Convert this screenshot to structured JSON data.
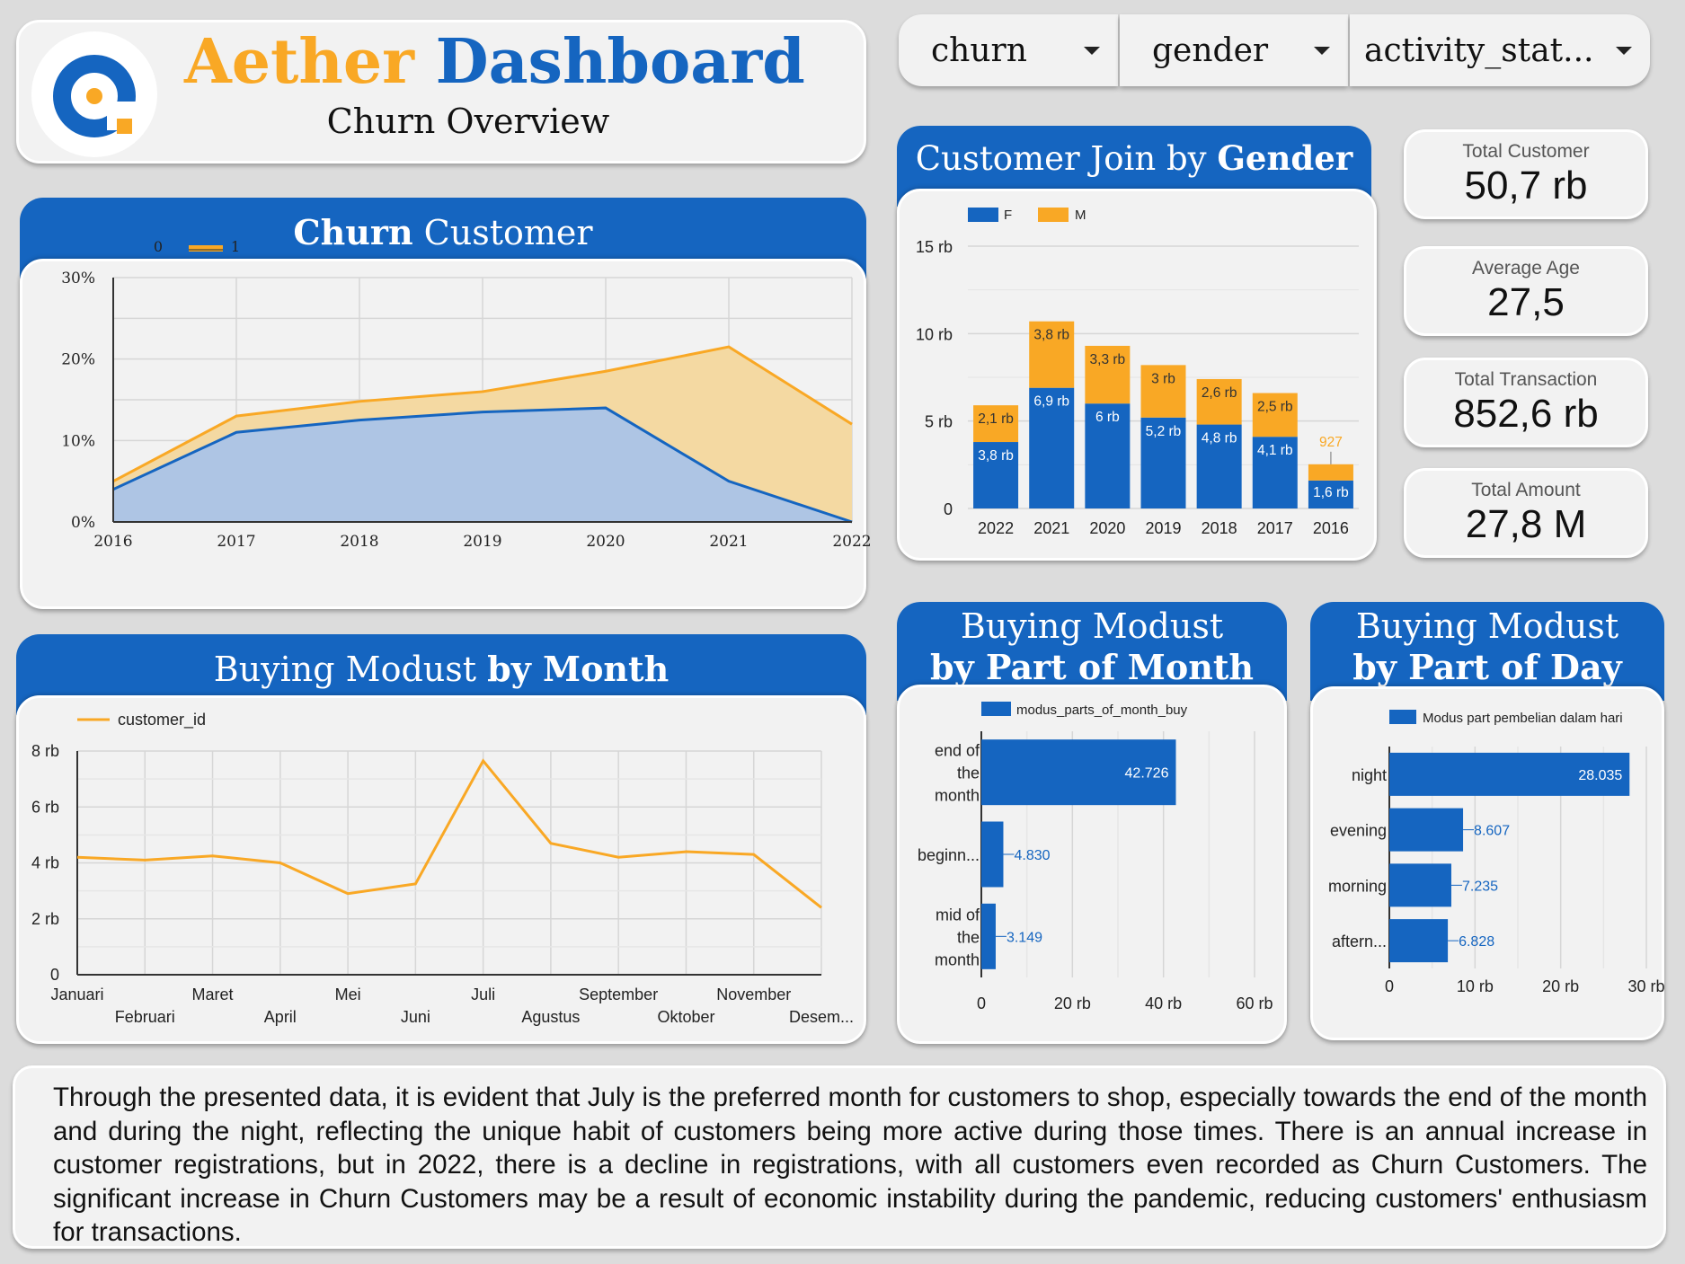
{
  "header": {
    "title_part1": "Aether",
    "title_part2": "Dashboard",
    "subtitle": "Churn Overview"
  },
  "filters": [
    {
      "label": "churn"
    },
    {
      "label": "gender"
    },
    {
      "label": "activity_stat..."
    }
  ],
  "kpis": [
    {
      "label": "Total Customer",
      "value": "50,7 rb"
    },
    {
      "label": "Average Age",
      "value": "27,5"
    },
    {
      "label": "Total Transaction",
      "value": "852,6 rb"
    },
    {
      "label": "Total Amount",
      "value": "27,8 M"
    }
  ],
  "summary_text": "Through the presented data, it is evident that July is the preferred month for customers to shop, especially towards the end of the month and during the night, reflecting the unique habit of customers being more active during those times. There is an annual increase in customer registrations, but in 2022, there is a decline in registrations, with all customers even recorded as Churn Customers. The significant increase in Churn Customers may be a result of economic instability during the pandemic, reducing customers' enthusiasm for transactions.",
  "colors": {
    "blue": "#1565c0",
    "orange": "#f9a825",
    "blue_fill": "#aec5e4",
    "orange_fill": "#f4d9a2"
  },
  "chart_data": [
    {
      "id": "churn",
      "type": "area",
      "title_bold": "Churn",
      "title_rest": "Customer",
      "x": [
        "2016",
        "2017",
        "2018",
        "2019",
        "2020",
        "2021",
        "2022"
      ],
      "series": [
        {
          "name": "0",
          "values": [
            4,
            11,
            12.5,
            13.5,
            14,
            5,
            0
          ]
        },
        {
          "name": "1",
          "values": [
            5,
            13,
            14.8,
            16,
            18.5,
            21.5,
            12
          ]
        }
      ],
      "yticks": [
        "0%",
        "10%",
        "20%",
        "30%"
      ],
      "ylim": [
        0,
        30
      ],
      "grid": true
    },
    {
      "id": "gender",
      "type": "bar",
      "stacked": true,
      "title_rest": "Customer Join by",
      "title_bold": "Gender",
      "categories": [
        "2022",
        "2021",
        "2020",
        "2019",
        "2018",
        "2017",
        "2016"
      ],
      "series": [
        {
          "name": "F",
          "values": [
            3.8,
            6.9,
            6,
            5.2,
            4.8,
            4.1,
            1.6
          ],
          "labels": [
            "3,8 rb",
            "6,9 rb",
            "6 rb",
            "5,2 rb",
            "4,8 rb",
            "4,1 rb",
            "1,6 rb"
          ]
        },
        {
          "name": "M",
          "values": [
            2.1,
            3.8,
            3.3,
            3,
            2.6,
            2.5,
            0.927
          ],
          "labels": [
            "2,1 rb",
            "3,8 rb",
            "3,3 rb",
            "3 rb",
            "2,6 rb",
            "2,5 rb",
            "927"
          ]
        }
      ],
      "yticks": [
        "0",
        "5 rb",
        "10 rb",
        "15 rb"
      ],
      "ylim": [
        0,
        15
      ],
      "legend": "top-left"
    },
    {
      "id": "month",
      "type": "line",
      "title_rest": "Buying Modust",
      "title_bold": "by Month",
      "x": [
        "Januari",
        "Februari",
        "Maret",
        "April",
        "Mei",
        "Juni",
        "Juli",
        "Agustus",
        "September",
        "Oktober",
        "November",
        "Desem..."
      ],
      "series": [
        {
          "name": "customer_id",
          "values": [
            4.2,
            4.1,
            4.25,
            4.0,
            2.9,
            3.25,
            7.65,
            4.7,
            4.2,
            4.4,
            4.3,
            2.4
          ]
        }
      ],
      "yticks": [
        "0",
        "2 rb",
        "4 rb",
        "6 rb",
        "8 rb"
      ],
      "ylim": [
        0,
        8
      ],
      "grid": true,
      "legend": "top-left"
    },
    {
      "id": "partmonth",
      "type": "bar",
      "orientation": "horizontal",
      "title_line1": "Buying Modust",
      "title_line2": "by Part of Month",
      "legend_label": "modus_parts_of_month_buy",
      "categories": [
        [
          "end of",
          "the",
          "month"
        ],
        [
          "beginn..."
        ],
        [
          "mid of",
          "the",
          "month"
        ]
      ],
      "values": [
        42726,
        4830,
        3149
      ],
      "labels": [
        "42.726",
        "4.830",
        "3.149"
      ],
      "xticks": [
        "0",
        "20 rb",
        "40 rb",
        "60 rb"
      ],
      "xlim": [
        0,
        60000
      ]
    },
    {
      "id": "partday",
      "type": "bar",
      "orientation": "horizontal",
      "title_line1": "Buying Modust",
      "title_line2": "by Part of Day",
      "legend_label": "Modus part pembelian dalam hari",
      "categories": [
        [
          "night"
        ],
        [
          "evening"
        ],
        [
          "morning"
        ],
        [
          "aftern..."
        ]
      ],
      "values": [
        28035,
        8607,
        7235,
        6828
      ],
      "labels": [
        "28.035",
        "8.607",
        "7.235",
        "6.828"
      ],
      "xticks": [
        "0",
        "10 rb",
        "20 rb",
        "30 rb"
      ],
      "xlim": [
        0,
        30000
      ]
    }
  ]
}
